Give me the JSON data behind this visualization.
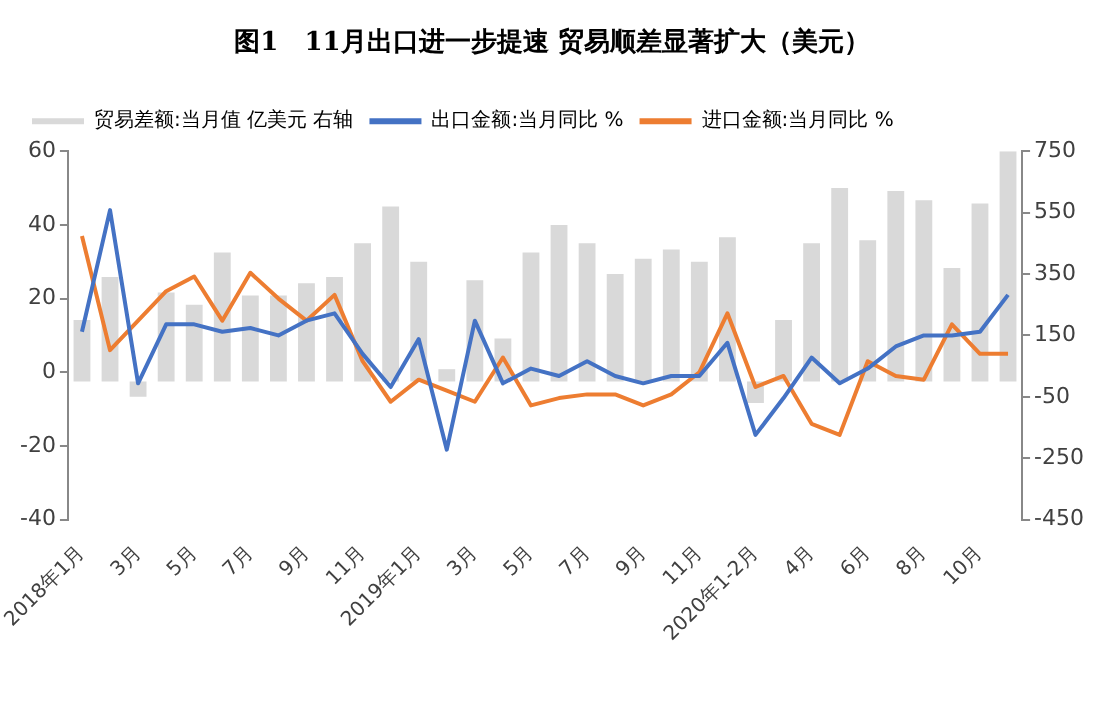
{
  "chart_data": {
    "type": "bar",
    "title": "图1　11月出口进一步提速 贸易顺差显著扩大（美元）",
    "categories": [
      "2018年1月",
      null,
      "3月",
      null,
      "5月",
      null,
      "7月",
      null,
      "9月",
      null,
      "11月",
      null,
      "2019年1月",
      null,
      "3月",
      null,
      "5月",
      null,
      "7月",
      null,
      "9月",
      null,
      "11月",
      null,
      "2020年1-2月",
      null,
      "4月",
      null,
      "6月",
      null,
      "8月",
      null,
      "10月",
      null
    ],
    "series": [
      {
        "name": "贸易差额:当月值 亿美元 右轴",
        "axis": "y2",
        "color": "#d9d9d9",
        "values": [
          200,
          340,
          -50,
          290,
          250,
          420,
          280,
          280,
          320,
          340,
          450,
          570,
          390,
          40,
          330,
          140,
          420,
          510,
          450,
          350,
          400,
          430,
          390,
          470,
          -70,
          200,
          450,
          630,
          460,
          620,
          590,
          370,
          580,
          750
        ]
      },
      {
        "name": "出口金额:当月同比 %",
        "type": "line",
        "color": "#4472c4",
        "values": [
          11,
          44,
          -3,
          13,
          13,
          11,
          12,
          10,
          14,
          16,
          5,
          -4,
          9,
          -21,
          14,
          -3,
          1,
          -1,
          3,
          -1,
          -3,
          -1,
          -1,
          8,
          -17,
          -7,
          4,
          -3,
          1,
          7,
          10,
          10,
          11,
          21
        ]
      },
      {
        "name": "进口金额:当月同比 %",
        "type": "line",
        "color": "#ed7d31",
        "values": [
          37,
          6,
          14,
          22,
          26,
          14,
          27,
          20,
          14,
          21,
          3,
          -8,
          -2,
          -5,
          -8,
          4,
          -9,
          -7,
          -6,
          -6,
          -9,
          -6,
          0,
          16,
          -4,
          -1,
          -14,
          -17,
          3,
          -1,
          -2,
          13,
          5,
          5
        ]
      }
    ],
    "ylim": [
      -40,
      60
    ],
    "yticks": [
      -40,
      -20,
      0,
      20,
      40,
      60
    ],
    "y2lim": [
      -450,
      750
    ],
    "y2ticks": [
      -450,
      -250,
      -50,
      150,
      350,
      550,
      750
    ],
    "legend": "top",
    "grid": false,
    "marker": "none",
    "line_style": "solid"
  }
}
